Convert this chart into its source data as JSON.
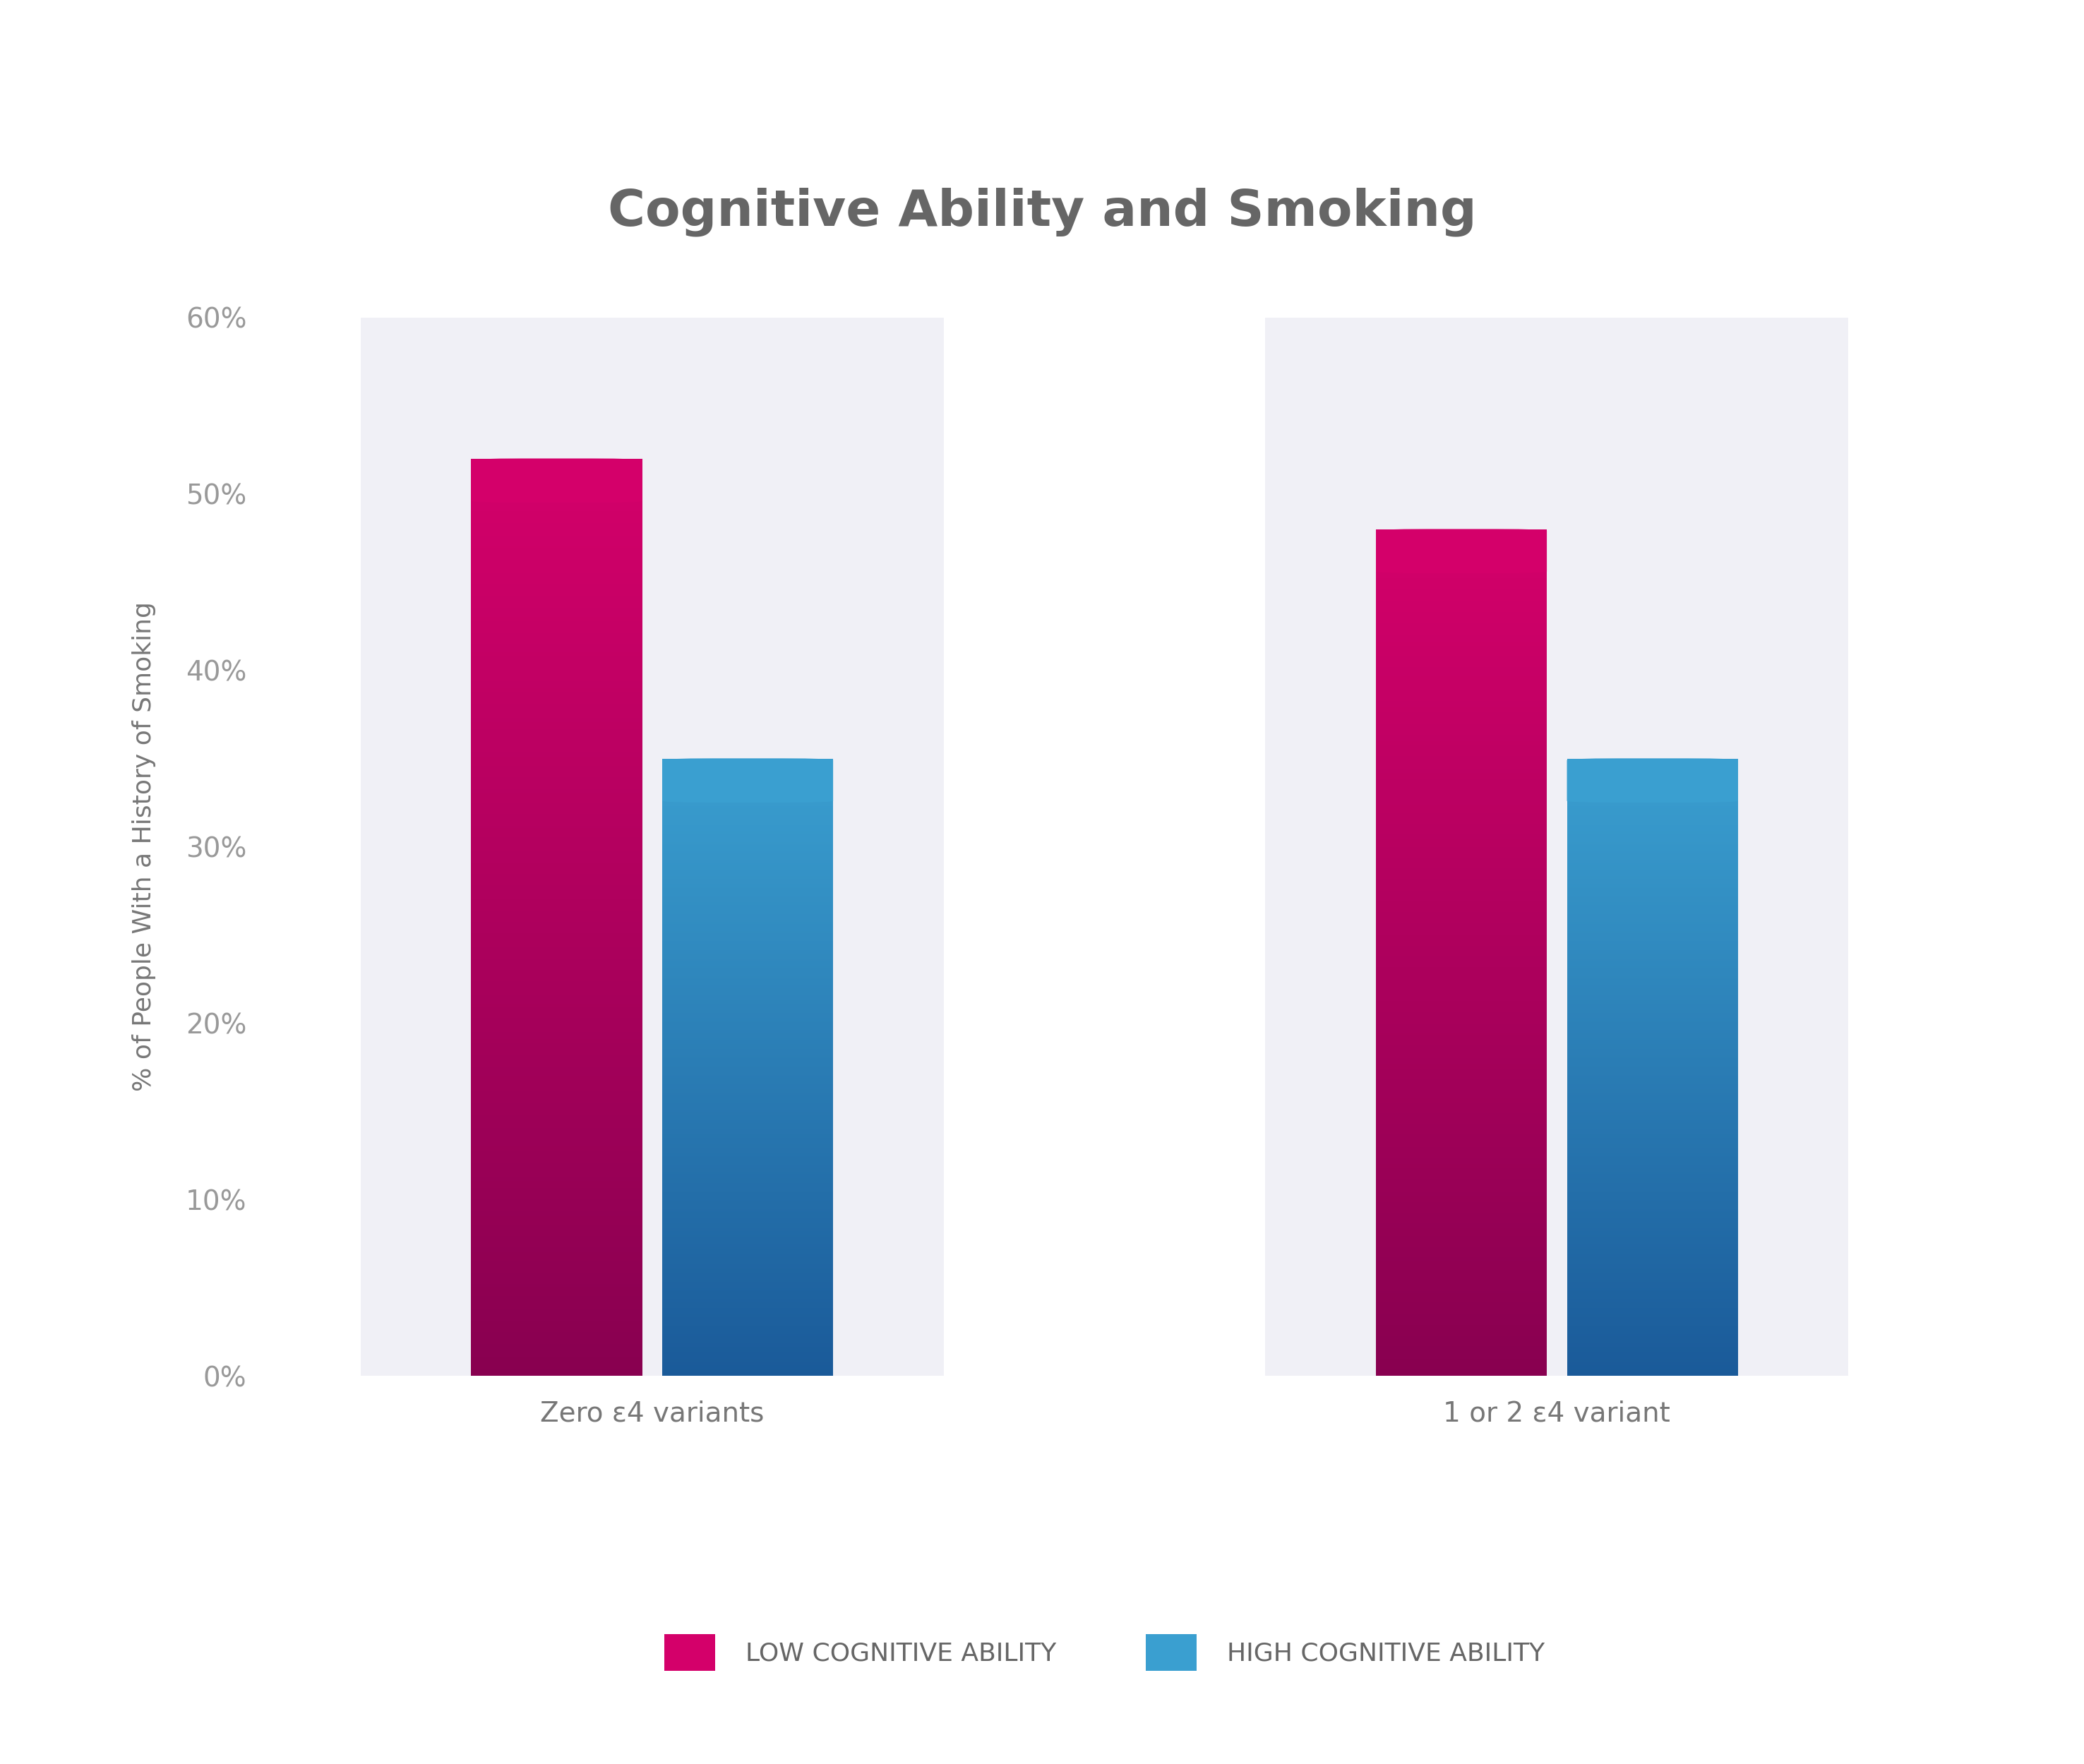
{
  "title": "Cognitive Ability and Smoking",
  "title_fontsize": 52,
  "title_color": "#666666",
  "ylabel": "% of People With a History of Smoking",
  "ylabel_fontsize": 26,
  "ylabel_color": "#777777",
  "groups": [
    "Zero ε4 variants",
    "1 or 2 ε4 variant"
  ],
  "categories": [
    "LOW COGNITIVE ABILITY",
    "HIGH COGNITIVE ABILITY"
  ],
  "values": [
    [
      52,
      35
    ],
    [
      48,
      35
    ]
  ],
  "low_color_top": "#d4006a",
  "low_color_bottom": "#880050",
  "high_color_top": "#3a9fd0",
  "high_color_bottom": "#1a5a99",
  "background_color": "#ffffff",
  "panel_bg_color": "#f0f0f6",
  "ylim_max": 60,
  "yticks": [
    0,
    10,
    20,
    30,
    40,
    50,
    60
  ],
  "tick_labels": [
    "0%",
    "10%",
    "20%",
    "30%",
    "40%",
    "50%",
    "60%"
  ],
  "tick_color": "#999999",
  "tick_fontsize": 28,
  "xlabel_fontsize": 28,
  "xlabel_color": "#777777",
  "legend_fontsize": 26,
  "legend_color": "#666666"
}
